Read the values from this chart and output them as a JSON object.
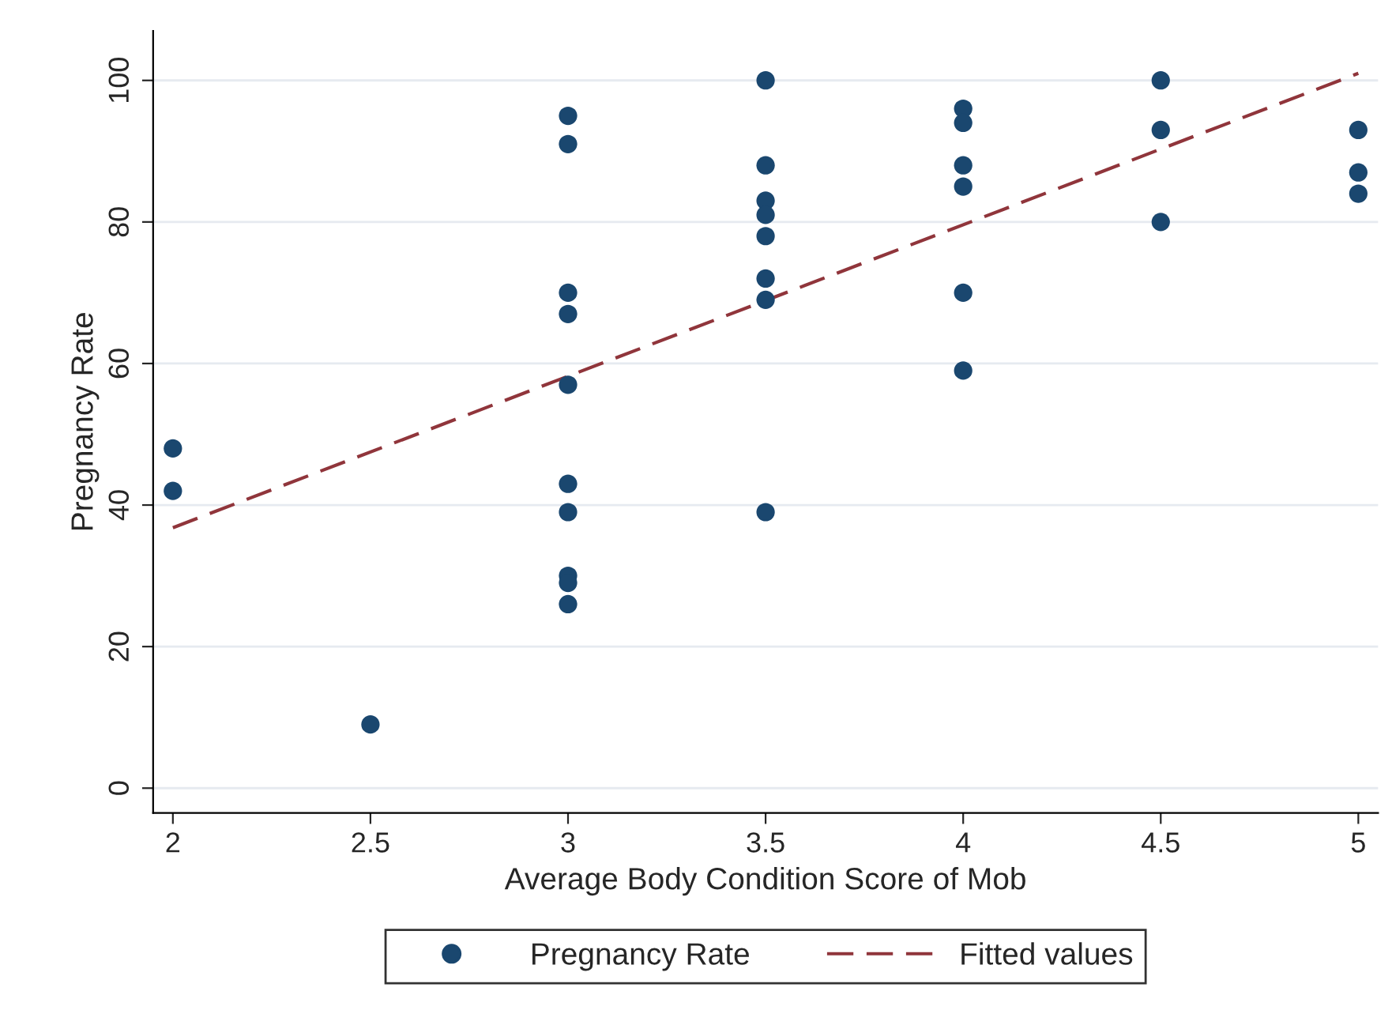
{
  "chart_data": {
    "type": "scatter",
    "xlabel": "Average Body Condition Score of Mob",
    "ylabel": "Pregnancy Rate",
    "series": [
      {
        "name": "Pregnancy Rate",
        "color": "#1a476f",
        "marker": "circle",
        "x": [
          2,
          2,
          2.5,
          3,
          3,
          3,
          3,
          3,
          3,
          3,
          3,
          3,
          3,
          3.5,
          3.5,
          3.5,
          3.5,
          3.5,
          3.5,
          3.5,
          3.5,
          4,
          4,
          4,
          4,
          4,
          4,
          4.5,
          4.5,
          4.5,
          5,
          5,
          5
        ],
        "values": [
          48,
          42,
          9,
          95,
          91,
          70,
          67,
          57,
          43,
          39,
          30,
          29,
          26,
          100,
          88,
          83,
          81,
          78,
          72,
          69,
          39,
          96,
          94,
          88,
          85,
          70,
          59,
          100,
          93,
          80,
          93,
          87,
          84
        ]
      },
      {
        "name": "Fitted values",
        "type": "line",
        "color": "#90353b",
        "line_style": "dashed",
        "marker": "none",
        "x": [
          2,
          5
        ],
        "values": [
          36.8,
          101
        ]
      }
    ],
    "xlim": [
      1.95,
      5.05
    ],
    "xticks": [
      2,
      2.5,
      3,
      3.5,
      4,
      4.5,
      5
    ],
    "ylim": [
      -3.5,
      107
    ],
    "yticks": [
      0,
      20,
      40,
      60,
      80,
      100
    ],
    "grid": "y",
    "legend": "bottom"
  }
}
